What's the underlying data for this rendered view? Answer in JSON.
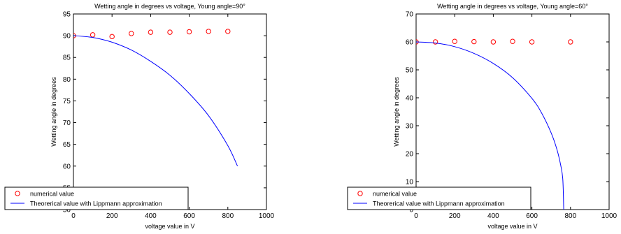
{
  "chart_data": [
    {
      "type": "line",
      "title": "Wetting angle in degrees vs voltage, Young angle=90°",
      "xlabel": "voltage value in V",
      "ylabel": "Wetting angle in degrees",
      "xlim": [
        0,
        1000
      ],
      "ylim": [
        50,
        95
      ],
      "xticks": [
        "0",
        "200",
        "400",
        "600",
        "800",
        "1000"
      ],
      "yticks": [
        "50",
        "55",
        "60",
        "65",
        "70",
        "75",
        "80",
        "85",
        "90",
        "95"
      ],
      "grid": false,
      "legend_position": "bottom-left",
      "series": [
        {
          "name": "numerical value",
          "style": "markers",
          "color": "#ff0000",
          "x": [
            0,
            100,
            200,
            300,
            400,
            500,
            600,
            700,
            800
          ],
          "y": [
            90.0,
            90.2,
            89.8,
            90.5,
            90.8,
            90.8,
            90.9,
            91.0,
            91.0
          ]
        },
        {
          "name": "Theorerical value with Lippmann approximation",
          "style": "line",
          "color": "#0000ff",
          "x": [
            0,
            100,
            200,
            300,
            400,
            500,
            600,
            700,
            800,
            850
          ],
          "y": [
            90.0,
            89.6,
            88.5,
            86.7,
            84.1,
            80.9,
            76.7,
            71.6,
            64.7,
            60.0
          ]
        }
      ]
    },
    {
      "type": "line",
      "title": "Wetting angle in degrees vs voltage, Young angle=60°",
      "xlabel": "voltage value in V",
      "ylabel": "Wetting angle in degrees",
      "xlim": [
        0,
        1000
      ],
      "ylim": [
        0,
        70
      ],
      "xticks": [
        "0",
        "200",
        "400",
        "600",
        "800",
        "1000"
      ],
      "yticks": [
        "0",
        "10",
        "20",
        "30",
        "40",
        "50",
        "60",
        "70"
      ],
      "grid": false,
      "legend_position": "bottom-left",
      "series": [
        {
          "name": "numerical value",
          "style": "markers",
          "color": "#ff0000",
          "x": [
            0,
            100,
            200,
            300,
            400,
            500,
            600,
            800
          ],
          "y": [
            60.0,
            60.0,
            60.2,
            60.1,
            60.0,
            60.2,
            60.0,
            60.0
          ]
        },
        {
          "name": "Theorerical value with Lippmann approximation",
          "style": "line",
          "color": "#0000ff",
          "x": [
            0,
            100,
            200,
            300,
            400,
            500,
            600,
            650,
            700,
            730,
            750,
            760,
            765
          ],
          "y": [
            60.0,
            59.6,
            58.3,
            55.9,
            52.3,
            47.2,
            39.8,
            34.6,
            27.4,
            21.4,
            15.6,
            10.7,
            0.0
          ]
        }
      ]
    }
  ]
}
